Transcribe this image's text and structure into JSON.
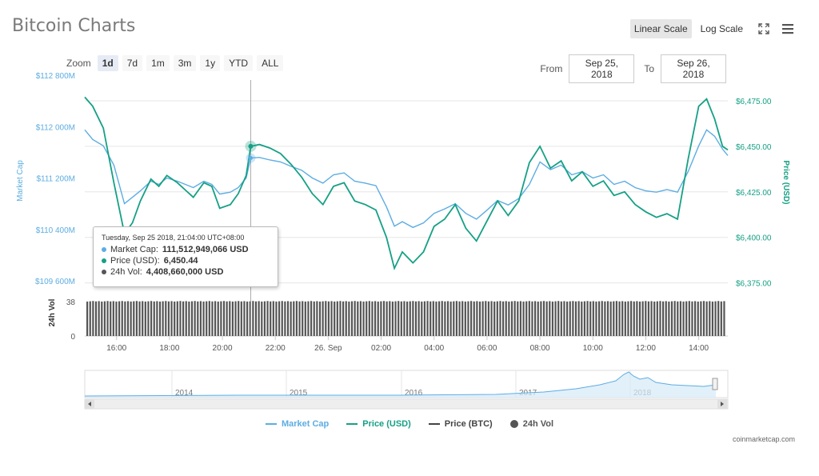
{
  "header": {
    "title": "Bitcoin Charts"
  },
  "scale": {
    "linear": "Linear Scale",
    "log": "Log Scale"
  },
  "zoom": {
    "label": "Zoom",
    "buttons": [
      "1d",
      "7d",
      "1m",
      "3m",
      "1y",
      "YTD",
      "ALL"
    ],
    "active": "1d"
  },
  "range": {
    "from_label": "From",
    "from_value": "Sep 25, 2018",
    "to_label": "To",
    "to_value": "Sep 26, 2018"
  },
  "tooltip": {
    "date": "Tuesday, Sep 25 2018, 21:04:00 UTC+08:00",
    "rows": [
      {
        "label": "Market Cap:",
        "value": "111,512,949,066 USD",
        "color": "#5dade2"
      },
      {
        "label": "Price (USD):",
        "value": "6,450.44",
        "color": "#16a085"
      },
      {
        "label": "24h Vol:",
        "value": "4,408,660,000 USD",
        "color": "#555555"
      }
    ]
  },
  "legend": [
    {
      "label": "Market Cap",
      "color": "#5dade2",
      "kind": "line"
    },
    {
      "label": "Price (USD)",
      "color": "#16a085",
      "kind": "line"
    },
    {
      "label": "Price (BTC)",
      "color": "#444444",
      "kind": "line"
    },
    {
      "label": "24h Vol",
      "color": "#555555",
      "kind": "dot"
    }
  ],
  "credit": "coinmarketcap.com",
  "chart_data": {
    "type": "line",
    "colors": {
      "market_cap": "#5dade2",
      "price_usd": "#16a085",
      "volume": "#555555"
    },
    "x_tick_labels": [
      "16:00",
      "18:00",
      "20:00",
      "22:00",
      "26. Sep",
      "02:00",
      "04:00",
      "06:00",
      "08:00",
      "10:00",
      "12:00",
      "14:00"
    ],
    "x_tick_hours": [
      16,
      18,
      20,
      22,
      24,
      26,
      28,
      30,
      32,
      34,
      36,
      38
    ],
    "x_range_hours": [
      14.8,
      39.1
    ],
    "left_axis": {
      "label": "Market Cap",
      "ticks": [
        109600,
        110400,
        111200,
        112000,
        112800
      ],
      "tick_labels": [
        "$109 600M",
        "$110 400M",
        "$111 200M",
        "$112 000M",
        "$112 800M"
      ],
      "range": [
        109600,
        112800
      ]
    },
    "right_axis": {
      "label": "Price (USD)",
      "ticks": [
        6375,
        6400,
        6425,
        6450,
        6475
      ],
      "tick_labels": [
        "$6,375.00",
        "$6,400.00",
        "$6,425.00",
        "$6,450.00",
        "$6,475.00"
      ],
      "range": [
        6370,
        6482
      ]
    },
    "volume_axis": {
      "label": "24h Vol",
      "tick_labels": [
        "0",
        "38"
      ],
      "ticks": [
        0,
        38
      ],
      "range": [
        0,
        45
      ]
    },
    "crosshair_hour": 21.07,
    "series": [
      {
        "name": "Price (USD)",
        "hours": [
          14.8,
          15.1,
          15.5,
          15.9,
          16.3,
          16.6,
          16.9,
          17.3,
          17.6,
          17.9,
          18.3,
          18.6,
          18.9,
          19.3,
          19.6,
          19.9,
          20.3,
          20.6,
          20.9,
          21.07,
          21.4,
          21.8,
          22.2,
          22.6,
          23.0,
          23.4,
          23.8,
          24.2,
          24.6,
          25.0,
          25.4,
          25.8,
          26.2,
          26.5,
          26.8,
          27.2,
          27.6,
          28.0,
          28.4,
          28.8,
          29.2,
          29.6,
          30.0,
          30.4,
          30.8,
          31.2,
          31.6,
          32.0,
          32.4,
          32.8,
          33.2,
          33.6,
          34.0,
          34.4,
          34.8,
          35.2,
          35.6,
          36.0,
          36.4,
          36.8,
          37.2,
          37.6,
          38.0,
          38.3,
          38.6,
          38.9,
          39.1
        ],
        "values": [
          6477,
          6472,
          6460,
          6430,
          6402,
          6408,
          6420,
          6432,
          6428,
          6434,
          6430,
          6426,
          6422,
          6430,
          6428,
          6416,
          6418,
          6424,
          6434,
          6450,
          6451,
          6449,
          6446,
          6440,
          6433,
          6424,
          6418,
          6428,
          6430,
          6420,
          6418,
          6415,
          6400,
          6383,
          6392,
          6386,
          6392,
          6406,
          6410,
          6418,
          6405,
          6398,
          6409,
          6420,
          6412,
          6420,
          6441,
          6450,
          6438,
          6442,
          6431,
          6436,
          6428,
          6431,
          6423,
          6425,
          6418,
          6414,
          6411,
          6413,
          6410,
          6443,
          6472,
          6476,
          6465,
          6450,
          6448
        ]
      },
      {
        "name": "Market Cap",
        "hours": [
          14.8,
          15.1,
          15.5,
          15.9,
          16.3,
          16.6,
          16.9,
          17.3,
          17.6,
          17.9,
          18.3,
          18.6,
          18.9,
          19.3,
          19.6,
          19.9,
          20.3,
          20.6,
          20.9,
          21.07,
          21.4,
          21.8,
          22.2,
          22.6,
          23.0,
          23.4,
          23.8,
          24.2,
          24.6,
          25.0,
          25.4,
          25.8,
          26.2,
          26.5,
          26.8,
          27.2,
          27.6,
          28.0,
          28.4,
          28.8,
          29.2,
          29.6,
          30.0,
          30.4,
          30.8,
          31.2,
          31.6,
          32.0,
          32.4,
          32.8,
          33.2,
          33.6,
          34.0,
          34.4,
          34.8,
          35.2,
          35.6,
          36.0,
          36.4,
          36.8,
          37.2,
          37.6,
          38.0,
          38.3,
          38.6,
          38.9,
          39.1
        ],
        "values": [
          111950,
          111800,
          111700,
          111400,
          110800,
          110900,
          111000,
          111150,
          111100,
          111200,
          111150,
          111100,
          111050,
          111150,
          111100,
          110950,
          110980,
          111050,
          111200,
          111512,
          111520,
          111480,
          111450,
          111380,
          111320,
          111200,
          111120,
          111250,
          111280,
          111150,
          111120,
          111080,
          110750,
          110450,
          110520,
          110430,
          110500,
          110650,
          110720,
          110800,
          110650,
          110560,
          110700,
          110850,
          110780,
          110880,
          111100,
          111450,
          111330,
          111400,
          111250,
          111300,
          111200,
          111250,
          111100,
          111150,
          111050,
          111000,
          110980,
          111020,
          110980,
          111300,
          111700,
          111950,
          111850,
          111650,
          111550
        ]
      },
      {
        "name": "24h Vol",
        "values_constant": 38
      }
    ]
  }
}
